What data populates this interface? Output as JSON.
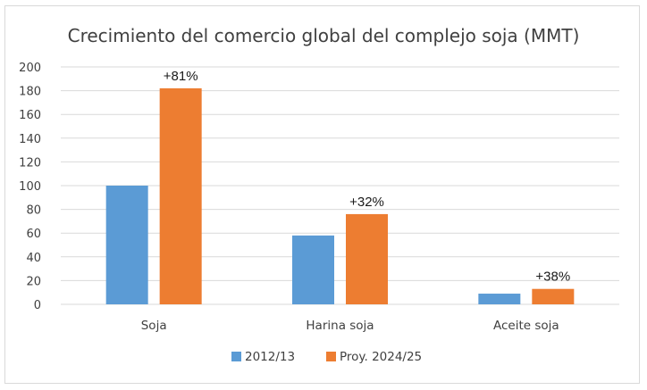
{
  "chart_data": {
    "type": "bar",
    "title": "Crecimiento del comercio global del complejo soja (MMT)",
    "categories": [
      "Soja",
      "Harina soja",
      "Aceite soja"
    ],
    "series": [
      {
        "name": "2012/13",
        "color": "#5b9bd5",
        "values": [
          100,
          58,
          9
        ]
      },
      {
        "name": "Proy. 2024/25",
        "color": "#ed7d31",
        "values": [
          182,
          76,
          13
        ]
      }
    ],
    "annotations": [
      "+81%",
      "+32%",
      "+38%"
    ],
    "ylim": [
      0,
      200
    ],
    "yticks": [
      "0",
      "20",
      "40",
      "60",
      "80",
      "100",
      "120",
      "140",
      "160",
      "180",
      "200"
    ],
    "grid": true,
    "legend_position": "bottom"
  }
}
